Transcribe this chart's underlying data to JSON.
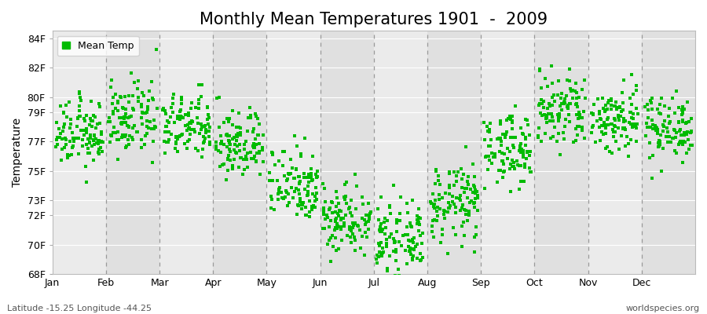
{
  "title": "Monthly Mean Temperatures 1901  -  2009",
  "ylabel": "Temperature",
  "yticks": [
    68,
    70,
    72,
    73,
    75,
    77,
    79,
    80,
    82,
    84
  ],
  "ytick_labels": [
    "68F",
    "70F",
    "72F",
    "73F",
    "75F",
    "77F",
    "79F",
    "80F",
    "82F",
    "84F"
  ],
  "ylim": [
    68.0,
    84.5
  ],
  "months": [
    "Jan",
    "Feb",
    "Mar",
    "Apr",
    "May",
    "Jun",
    "Jul",
    "Aug",
    "Sep",
    "Oct",
    "Nov",
    "Dec"
  ],
  "mean_temps": [
    77.5,
    78.5,
    78.0,
    76.8,
    74.2,
    71.8,
    70.3,
    72.8,
    76.5,
    79.0,
    78.5,
    78.0
  ],
  "std_temps": [
    1.1,
    1.2,
    1.1,
    1.2,
    1.3,
    1.2,
    1.1,
    1.3,
    1.2,
    1.4,
    1.2,
    1.1
  ],
  "n_years": 109,
  "dot_color": "#00BB00",
  "dot_size": 6,
  "background_color": "#FFFFFF",
  "plot_bg_light": "#EBEBEB",
  "plot_bg_dark": "#E0E0E0",
  "hline_color": "#FFFFFF",
  "vline_color": "#999999",
  "title_fontsize": 15,
  "axis_fontsize": 10,
  "tick_fontsize": 9,
  "legend_label": "Mean Temp",
  "footer_left": "Latitude -15.25 Longitude -44.25",
  "footer_right": "worldspecies.org",
  "footer_fontsize": 8
}
